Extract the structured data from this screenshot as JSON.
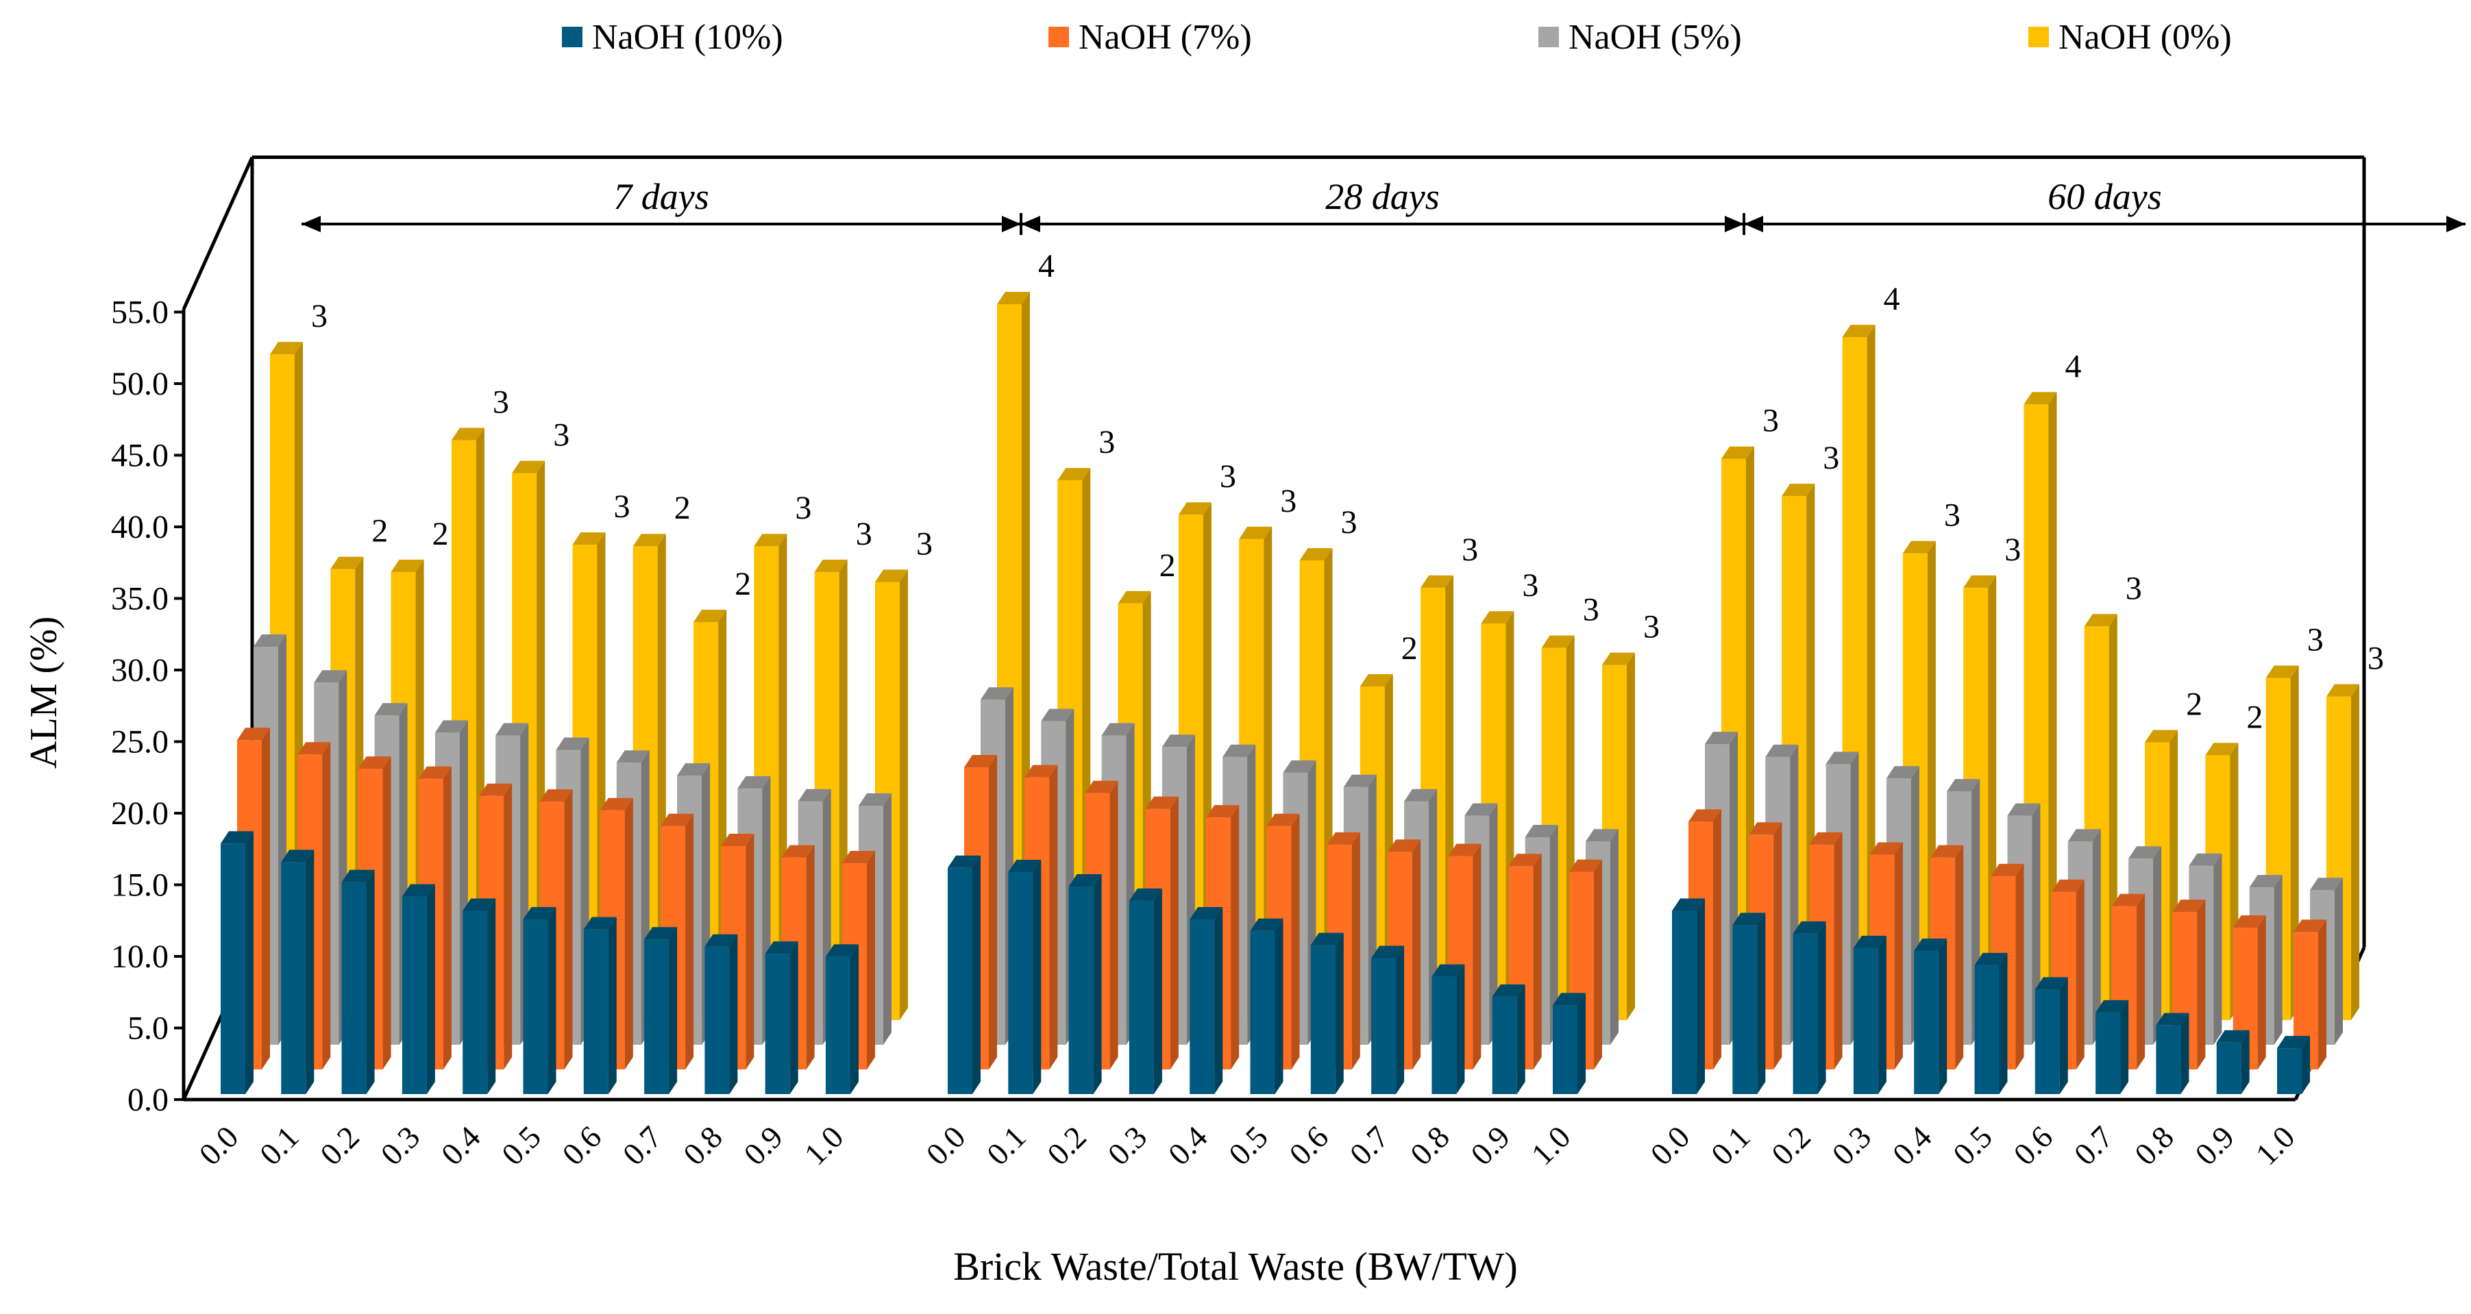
{
  "chart_data": {
    "type": "bar",
    "style": "3d-clustered",
    "ylabel": "ALM (%)",
    "xlabel": "Brick Waste/Total Waste (BW/TW)",
    "ylim": [
      0,
      55
    ],
    "yticks": [
      "0.0",
      "5.0",
      "10.0",
      "15.0",
      "20.0",
      "25.0",
      "30.0",
      "35.0",
      "40.0",
      "45.0",
      "50.0",
      "55.0"
    ],
    "categories": [
      "0.0",
      "0.1",
      "0.2",
      "0.3",
      "0.4",
      "0.5",
      "0.6",
      "0.7",
      "0.8",
      "0.9",
      "1.0"
    ],
    "periods": [
      "7 days",
      "28 days",
      "60 days"
    ],
    "series": [
      {
        "name": "NaOH (10%)",
        "color": "#005A80",
        "values": [
          [
            17.5,
            16.2,
            14.8,
            13.8,
            12.8,
            12.2,
            11.5,
            10.8,
            10.3,
            9.8,
            9.6
          ],
          [
            15.8,
            15.5,
            14.5,
            13.5,
            12.2,
            11.4,
            10.4,
            9.5,
            8.2,
            6.8,
            6.2
          ],
          [
            12.8,
            11.8,
            11.2,
            10.2,
            10.0,
            9.0,
            7.3,
            5.7,
            4.8,
            3.6,
            3.2
          ]
        ]
      },
      {
        "name": "NaOH (7%)",
        "color": "#FF6F21",
        "values": [
          [
            23.0,
            22.0,
            21.0,
            20.3,
            19.1,
            18.7,
            18.1,
            17.0,
            15.6,
            14.8,
            14.4
          ],
          [
            21.1,
            20.4,
            19.3,
            18.2,
            17.6,
            17.0,
            15.7,
            15.2,
            14.9,
            14.2,
            13.8
          ],
          [
            17.3,
            16.4,
            15.7,
            15.0,
            14.8,
            13.5,
            12.4,
            11.4,
            11.0,
            9.9,
            9.6
          ]
        ]
      },
      {
        "name": "NaOH (5%)",
        "color": "#A6A6A6",
        "values": [
          [
            27.8,
            25.3,
            23.0,
            21.8,
            21.6,
            20.6,
            19.7,
            18.8,
            17.9,
            17.0,
            16.7
          ],
          [
            24.1,
            22.6,
            21.6,
            20.8,
            20.1,
            19.0,
            18.0,
            17.0,
            16.0,
            14.5,
            14.2
          ],
          [
            21.0,
            20.1,
            19.6,
            18.6,
            17.7,
            16.0,
            14.2,
            13.0,
            12.5,
            11.0,
            10.8
          ]
        ]
      },
      {
        "name": "NaOH (0%)",
        "color": "#FFC000",
        "values": [
          [
            46.5,
            31.5,
            31.3,
            40.5,
            38.2,
            33.2,
            33.1,
            27.8,
            33.1,
            31.3,
            30.6
          ],
          [
            50.0,
            37.7,
            29.1,
            35.3,
            33.6,
            32.1,
            23.3,
            30.2,
            27.7,
            26.0,
            24.8
          ],
          [
            39.2,
            36.6,
            47.7,
            32.6,
            30.2,
            43.0,
            27.5,
            19.4,
            18.5,
            23.9,
            22.6
          ]
        ]
      }
    ],
    "bar_labels": [
      [
        "3",
        "2",
        "2",
        "3",
        "3",
        "3",
        "2",
        "2",
        "3",
        "3",
        "3"
      ],
      [
        "4",
        "3",
        "2",
        "3",
        "3",
        "3",
        "2",
        "3",
        "3",
        "3",
        "3"
      ],
      [
        "3",
        "3",
        "4",
        "3",
        "3",
        "4",
        "3",
        "2",
        "2",
        "3",
        "3"
      ]
    ]
  }
}
